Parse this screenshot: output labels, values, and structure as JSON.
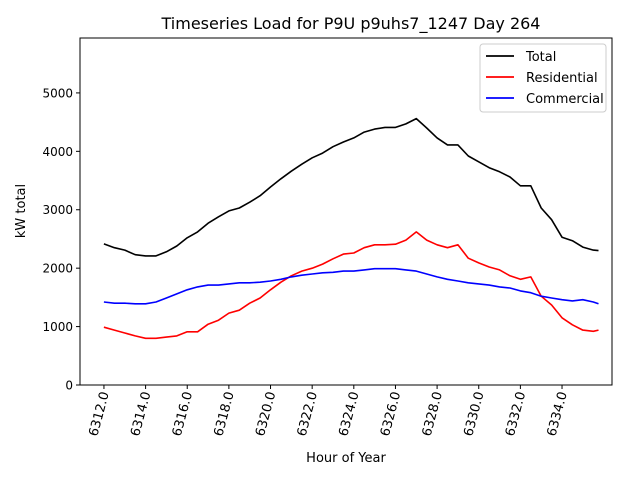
{
  "chart_data": {
    "type": "line",
    "title": "Timeseries Load for P9U p9uhs7_1247  Day 264",
    "xlabel": "Hour of Year",
    "ylabel": "kW total",
    "xlim": [
      6310.85,
      6336.4
    ],
    "ylim": [
      0,
      5940
    ],
    "xticks": [
      6312,
      6314,
      6316,
      6318,
      6320,
      6322,
      6324,
      6326,
      6328,
      6330,
      6332,
      6334
    ],
    "xtick_labels": [
      "6312.0",
      "6314.0",
      "6316.0",
      "6318.0",
      "6320.0",
      "6322.0",
      "6324.0",
      "6326.0",
      "6328.0",
      "6330.0",
      "6332.0",
      "6334.0"
    ],
    "yticks": [
      0,
      1000,
      2000,
      3000,
      4000,
      5000
    ],
    "ytick_labels": [
      "0",
      "1000",
      "2000",
      "3000",
      "4000",
      "5000"
    ],
    "grid": false,
    "legend_position": "top-right",
    "x": [
      6312,
      6312.5,
      6313,
      6313.5,
      6314,
      6314.5,
      6315,
      6315.5,
      6316,
      6316.5,
      6317,
      6317.5,
      6318,
      6318.5,
      6319,
      6319.5,
      6320,
      6320.5,
      6321,
      6321.5,
      6322,
      6322.5,
      6323,
      6323.5,
      6324,
      6324.5,
      6325,
      6325.5,
      6326,
      6326.5,
      6327,
      6327.5,
      6328,
      6328.5,
      6329,
      6329.5,
      6330,
      6330.5,
      6331,
      6331.5,
      6332,
      6332.5,
      6333,
      6333.5,
      6334,
      6334.5,
      6335,
      6335.5,
      6335.75
    ],
    "series": [
      {
        "name": "Total",
        "color": "#000000",
        "values": [
          2415,
          2350,
          2310,
          2230,
          2210,
          2210,
          2280,
          2380,
          2520,
          2620,
          2770,
          2880,
          2980,
          3030,
          3130,
          3240,
          3390,
          3530,
          3660,
          3780,
          3890,
          3970,
          4080,
          4160,
          4230,
          4330,
          4380,
          4410,
          4410,
          4470,
          4560,
          4400,
          4230,
          4110,
          4110,
          3920,
          3820,
          3720,
          3650,
          3560,
          3410,
          3410,
          3030,
          2830,
          2530,
          2470,
          2360,
          2310,
          2300
        ]
      },
      {
        "name": "Residential",
        "color": "#ff0000",
        "values": [
          990,
          940,
          890,
          840,
          800,
          800,
          820,
          840,
          910,
          910,
          1040,
          1110,
          1230,
          1280,
          1400,
          1490,
          1630,
          1760,
          1870,
          1950,
          2000,
          2070,
          2160,
          2240,
          2260,
          2350,
          2400,
          2400,
          2410,
          2480,
          2620,
          2480,
          2400,
          2350,
          2400,
          2170,
          2090,
          2020,
          1970,
          1870,
          1810,
          1850,
          1520,
          1370,
          1150,
          1030,
          940,
          920,
          940
        ]
      },
      {
        "name": "Commercial",
        "color": "#0000ff",
        "values": [
          1420,
          1400,
          1400,
          1390,
          1390,
          1420,
          1490,
          1560,
          1630,
          1680,
          1710,
          1710,
          1730,
          1750,
          1750,
          1760,
          1780,
          1810,
          1850,
          1880,
          1900,
          1920,
          1930,
          1950,
          1950,
          1970,
          1990,
          1990,
          1990,
          1970,
          1950,
          1900,
          1850,
          1810,
          1780,
          1750,
          1730,
          1710,
          1680,
          1660,
          1610,
          1580,
          1520,
          1490,
          1460,
          1440,
          1460,
          1420,
          1390
        ]
      }
    ]
  }
}
